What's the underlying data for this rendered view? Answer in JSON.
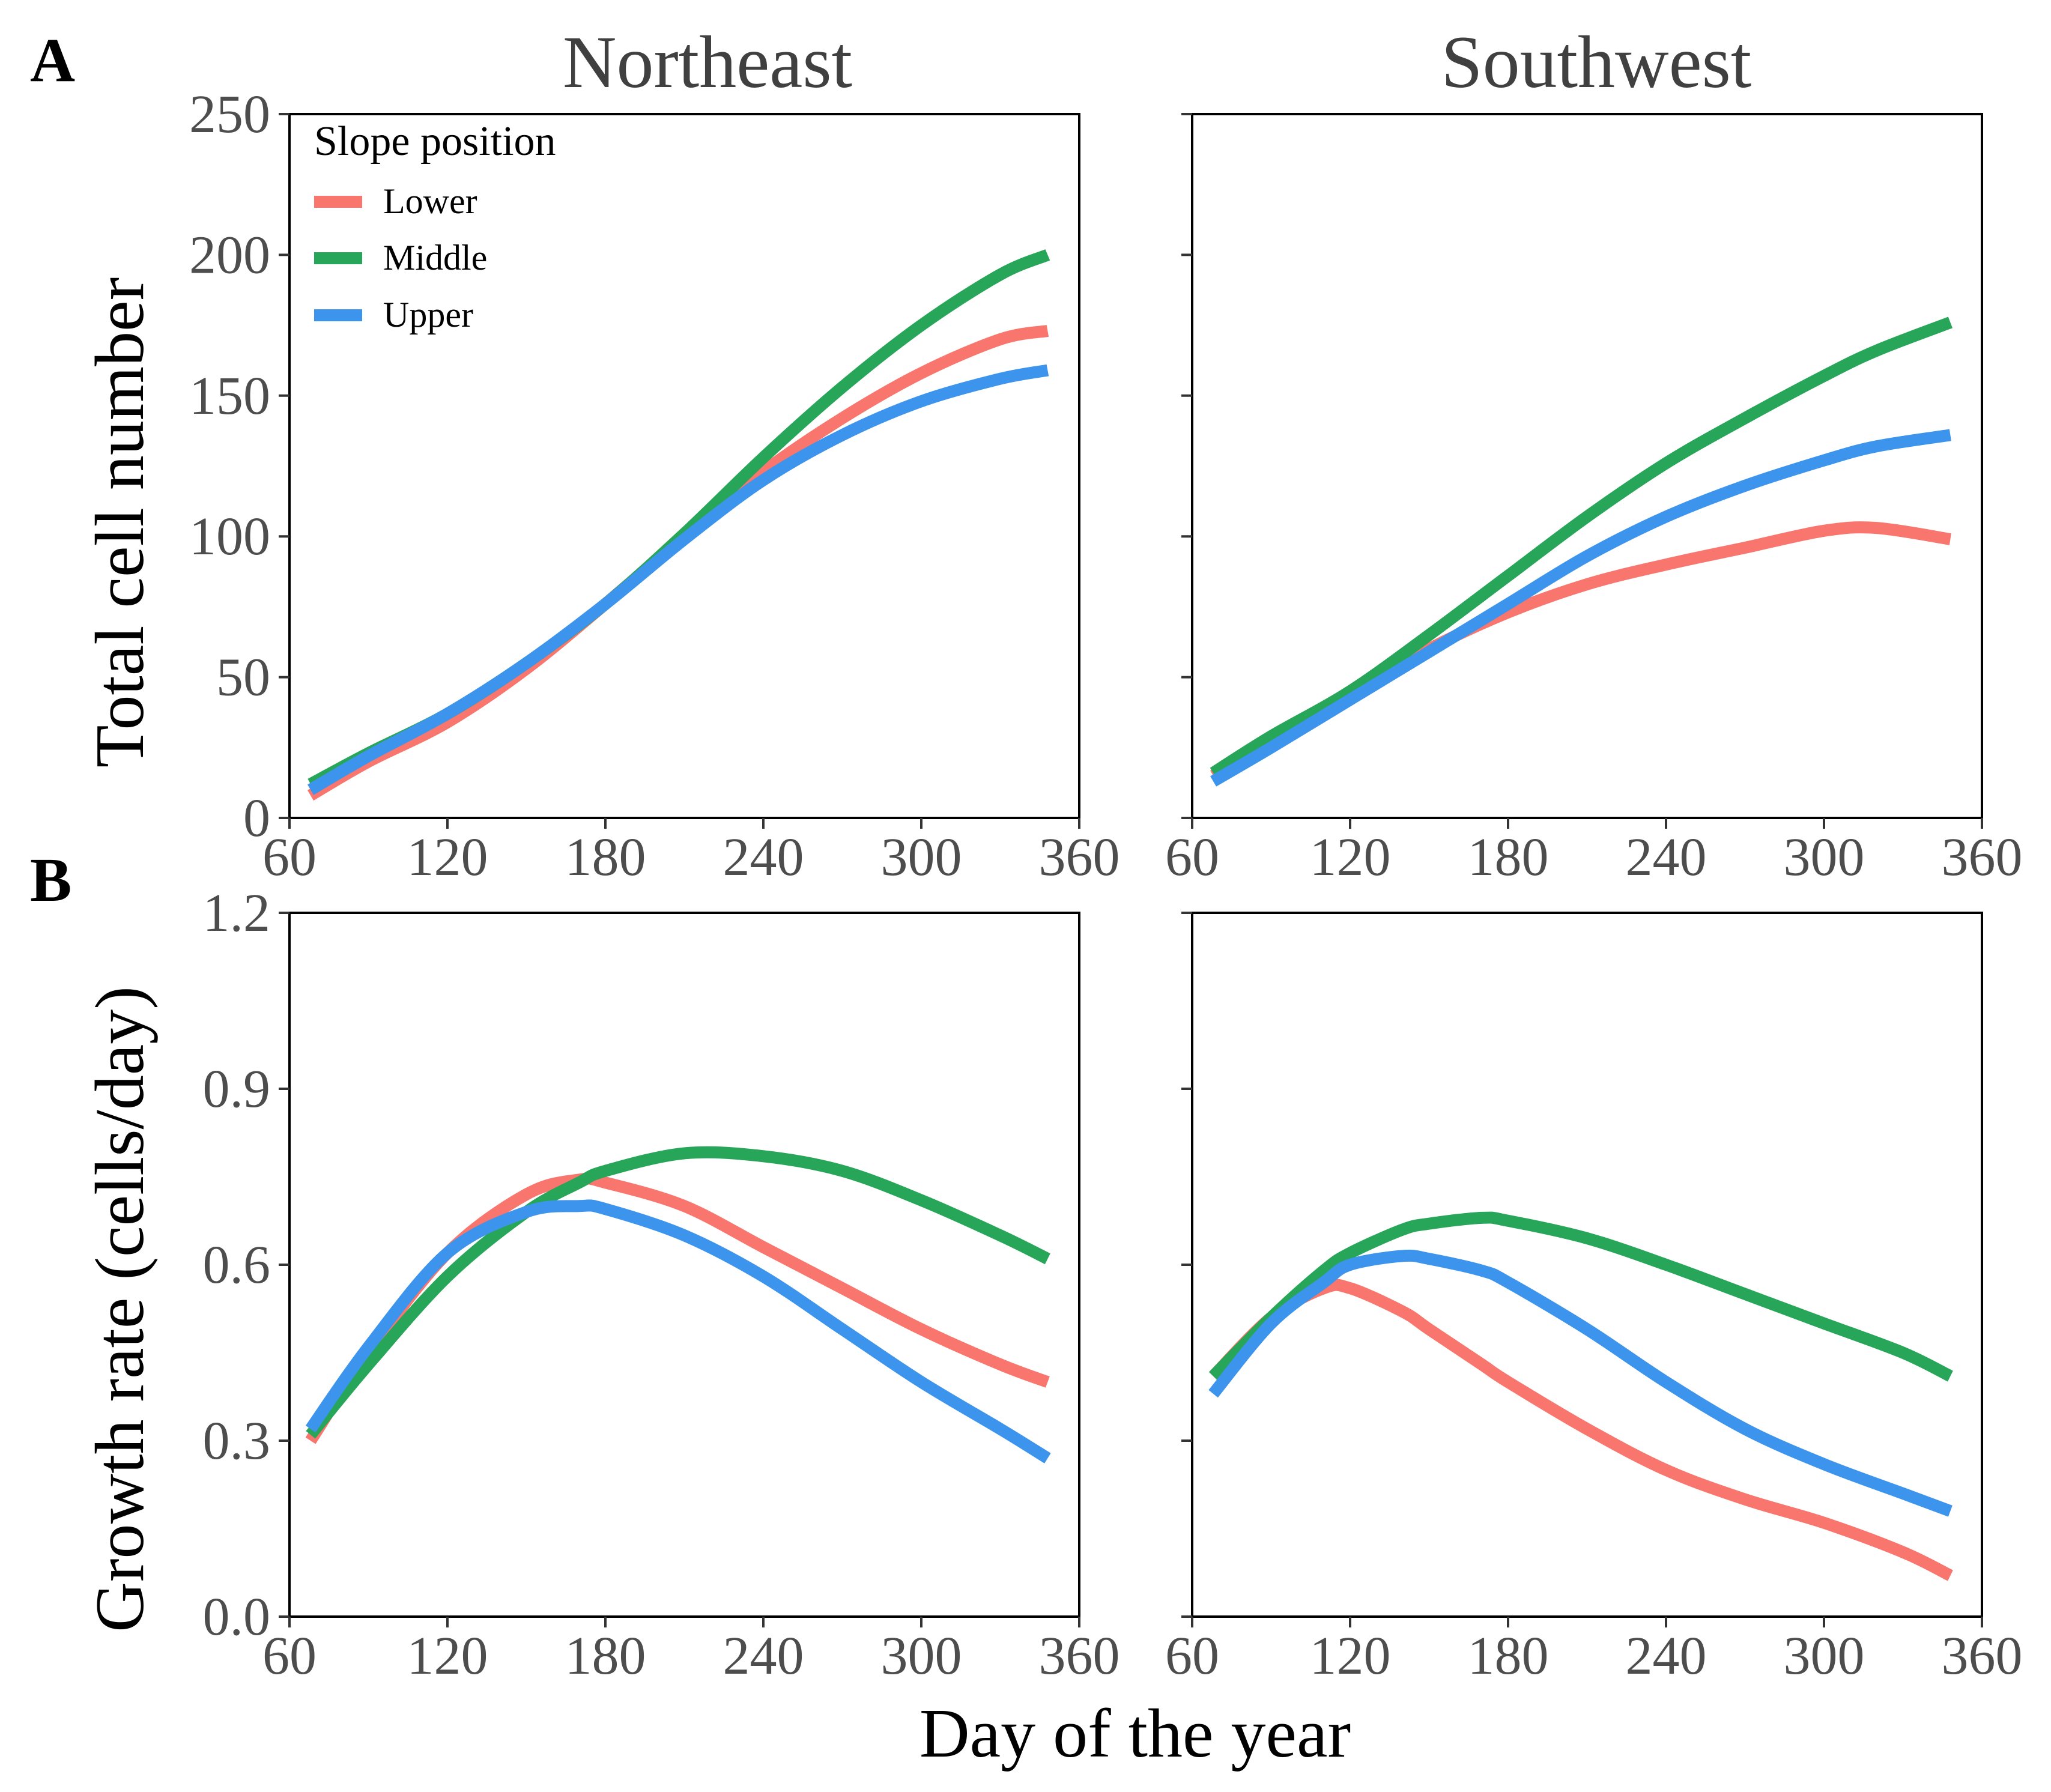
{
  "figure": {
    "panel_letters": [
      "A",
      "B"
    ],
    "facets": [
      "Northeast",
      "Southwest"
    ],
    "x_axis_title": "Day of the year"
  },
  "legend": {
    "title": "Slope position",
    "entries": [
      {
        "label": "Lower",
        "color": "#F8766D"
      },
      {
        "label": "Middle",
        "color": "#27A559"
      },
      {
        "label": "Upper",
        "color": "#3D94EC"
      }
    ]
  },
  "chart_data": [
    {
      "type": "line",
      "panel": "A",
      "facet": "Northeast",
      "title": "Northeast",
      "xlabel": "Day of the year",
      "ylabel": "Total cell number",
      "xlim": [
        60,
        360
      ],
      "ylim": [
        0,
        250
      ],
      "xticks": [
        60,
        120,
        180,
        240,
        300,
        360
      ],
      "yticks": [
        0,
        50,
        100,
        150,
        200,
        250
      ],
      "ytick_labels": [
        "0",
        "50",
        "100",
        "150",
        "200",
        "250"
      ],
      "x": [
        68,
        90,
        120,
        150,
        180,
        210,
        240,
        270,
        300,
        330,
        348
      ],
      "series": [
        {
          "name": "Lower",
          "values": [
            8,
            20,
            34,
            53,
            76,
            100,
            123,
            142,
            158,
            170,
            173
          ]
        },
        {
          "name": "Middle",
          "values": [
            12,
            23,
            37,
            55,
            76,
            101,
            128,
            153,
            175,
            193,
            200
          ]
        },
        {
          "name": "Upper",
          "values": [
            10,
            22,
            37,
            55,
            76,
            99,
            120,
            136,
            148,
            156,
            159
          ]
        }
      ]
    },
    {
      "type": "line",
      "panel": "A",
      "facet": "Southwest",
      "title": "Southwest",
      "xlabel": "Day of the year",
      "ylabel": "Total cell number",
      "xlim": [
        60,
        360
      ],
      "ylim": [
        0,
        250
      ],
      "xticks": [
        60,
        120,
        180,
        240,
        300,
        360
      ],
      "yticks": [
        0,
        50,
        100,
        150,
        200,
        250
      ],
      "x": [
        68,
        90,
        120,
        150,
        180,
        210,
        240,
        270,
        300,
        320,
        348
      ],
      "series": [
        {
          "name": "Lower",
          "values": [
            15,
            27,
            44,
            60,
            73,
            83,
            90,
            96,
            102,
            103,
            99
          ]
        },
        {
          "name": "Middle",
          "values": [
            16,
            29,
            45,
            65,
            86,
            107,
            126,
            142,
            157,
            166,
            176
          ]
        },
        {
          "name": "Upper",
          "values": [
            13,
            25,
            42,
            59,
            76,
            93,
            107,
            118,
            127,
            132,
            136
          ]
        }
      ]
    },
    {
      "type": "line",
      "panel": "B",
      "facet": "Northeast",
      "xlabel": "Day of the year",
      "ylabel": "Growth rate (cells/day)",
      "xlim": [
        60,
        360
      ],
      "ylim": [
        0,
        1.2
      ],
      "xticks": [
        60,
        120,
        180,
        240,
        300,
        360
      ],
      "yticks": [
        0,
        0.3,
        0.6,
        0.9,
        1.2
      ],
      "ytick_labels": [
        "0.0",
        "0.3",
        "0.6",
        "0.9",
        "1.2"
      ],
      "x": [
        68,
        90,
        120,
        150,
        170,
        180,
        210,
        240,
        270,
        300,
        330,
        348
      ],
      "series": [
        {
          "name": "Lower",
          "values": [
            0.3,
            0.45,
            0.62,
            0.72,
            0.745,
            0.74,
            0.7,
            0.63,
            0.56,
            0.49,
            0.43,
            0.4
          ]
        },
        {
          "name": "Middle",
          "values": [
            0.31,
            0.43,
            0.58,
            0.69,
            0.74,
            0.76,
            0.79,
            0.785,
            0.76,
            0.71,
            0.65,
            0.61
          ]
        },
        {
          "name": "Upper",
          "values": [
            0.32,
            0.46,
            0.62,
            0.69,
            0.7,
            0.695,
            0.65,
            0.58,
            0.49,
            0.4,
            0.32,
            0.27
          ]
        }
      ]
    },
    {
      "type": "line",
      "panel": "B",
      "facet": "Southwest",
      "xlabel": "Day of the year",
      "ylabel": "Growth rate (cells/day)",
      "xlim": [
        60,
        360
      ],
      "ylim": [
        0,
        1.2
      ],
      "xticks": [
        60,
        120,
        180,
        240,
        300,
        360
      ],
      "yticks": [
        0,
        0.3,
        0.6,
        0.9,
        1.2
      ],
      "x": [
        68,
        90,
        110,
        120,
        140,
        150,
        170,
        180,
        210,
        240,
        270,
        300,
        330,
        348
      ],
      "series": [
        {
          "name": "Lower",
          "values": [
            0.41,
            0.51,
            0.56,
            0.56,
            0.52,
            0.49,
            0.43,
            0.4,
            0.32,
            0.25,
            0.2,
            0.16,
            0.11,
            0.07
          ]
        },
        {
          "name": "Middle",
          "values": [
            0.41,
            0.51,
            0.59,
            0.62,
            0.66,
            0.67,
            0.68,
            0.675,
            0.645,
            0.6,
            0.55,
            0.5,
            0.45,
            0.41
          ]
        },
        {
          "name": "Upper",
          "values": [
            0.38,
            0.5,
            0.57,
            0.6,
            0.615,
            0.61,
            0.59,
            0.57,
            0.49,
            0.4,
            0.32,
            0.26,
            0.21,
            0.18
          ]
        }
      ]
    }
  ]
}
